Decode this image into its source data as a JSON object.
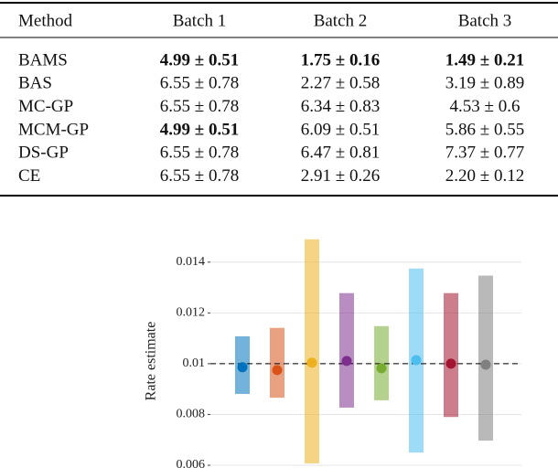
{
  "table": {
    "header": [
      "Method",
      "Batch 1",
      "Batch 2",
      "Batch 3"
    ],
    "rows": [
      [
        "BAMS",
        "4.99 ± 0.51",
        "1.75 ± 0.16",
        "1.49 ± 0.21"
      ],
      [
        "BAS",
        "6.55 ± 0.78",
        "2.27 ± 0.58",
        "3.19 ± 0.89"
      ],
      [
        "MC-GP",
        "6.55 ± 0.78",
        "6.34 ± 0.83",
        "4.53 ± 0.6"
      ],
      [
        "MCM-GP",
        "4.99 ± 0.51",
        "6.09 ± 0.51",
        "5.86 ± 0.55"
      ],
      [
        "DS-GP",
        "6.55 ± 0.78",
        "6.47 ± 0.81",
        "7.37 ± 0.77"
      ],
      [
        "CE",
        "6.55 ± 0.78",
        "2.91 ± 0.26",
        "2.20 ± 0.12"
      ]
    ],
    "bold": [
      [
        false,
        true,
        true,
        true
      ],
      [
        false,
        false,
        false,
        false
      ],
      [
        false,
        false,
        false,
        false
      ],
      [
        false,
        true,
        false,
        false
      ],
      [
        false,
        false,
        false,
        false
      ],
      [
        false,
        false,
        false,
        false
      ]
    ]
  },
  "chart_data": {
    "type": "interval",
    "y_label": "Rate estimate",
    "categories": [
      null,
      null,
      null,
      null,
      null,
      null,
      null,
      null
    ],
    "values": [
      0.00986,
      0.00975,
      0.01004,
      0.01011,
      0.00982,
      0.01014,
      0.01,
      0.00996
    ],
    "low": [
      0.00881,
      0.00866,
      0.00607,
      0.00827,
      0.00856,
      0.0065,
      0.0079,
      0.00697
    ],
    "high": [
      0.01108,
      0.01141,
      0.0149,
      0.01278,
      0.01148,
      0.01375,
      0.01278,
      0.01347
    ],
    "colors": [
      "#0072bd",
      "#d95319",
      "#edb120",
      "#7e2f8e",
      "#77ac30",
      "#4dbeee",
      "#a2142f",
      "#808080"
    ],
    "reference_line": 0.01,
    "ylim": [
      0.006,
      0.015
    ],
    "yticks": [
      0.006,
      0.008,
      0.01,
      0.012,
      0.014
    ],
    "grid": true
  }
}
